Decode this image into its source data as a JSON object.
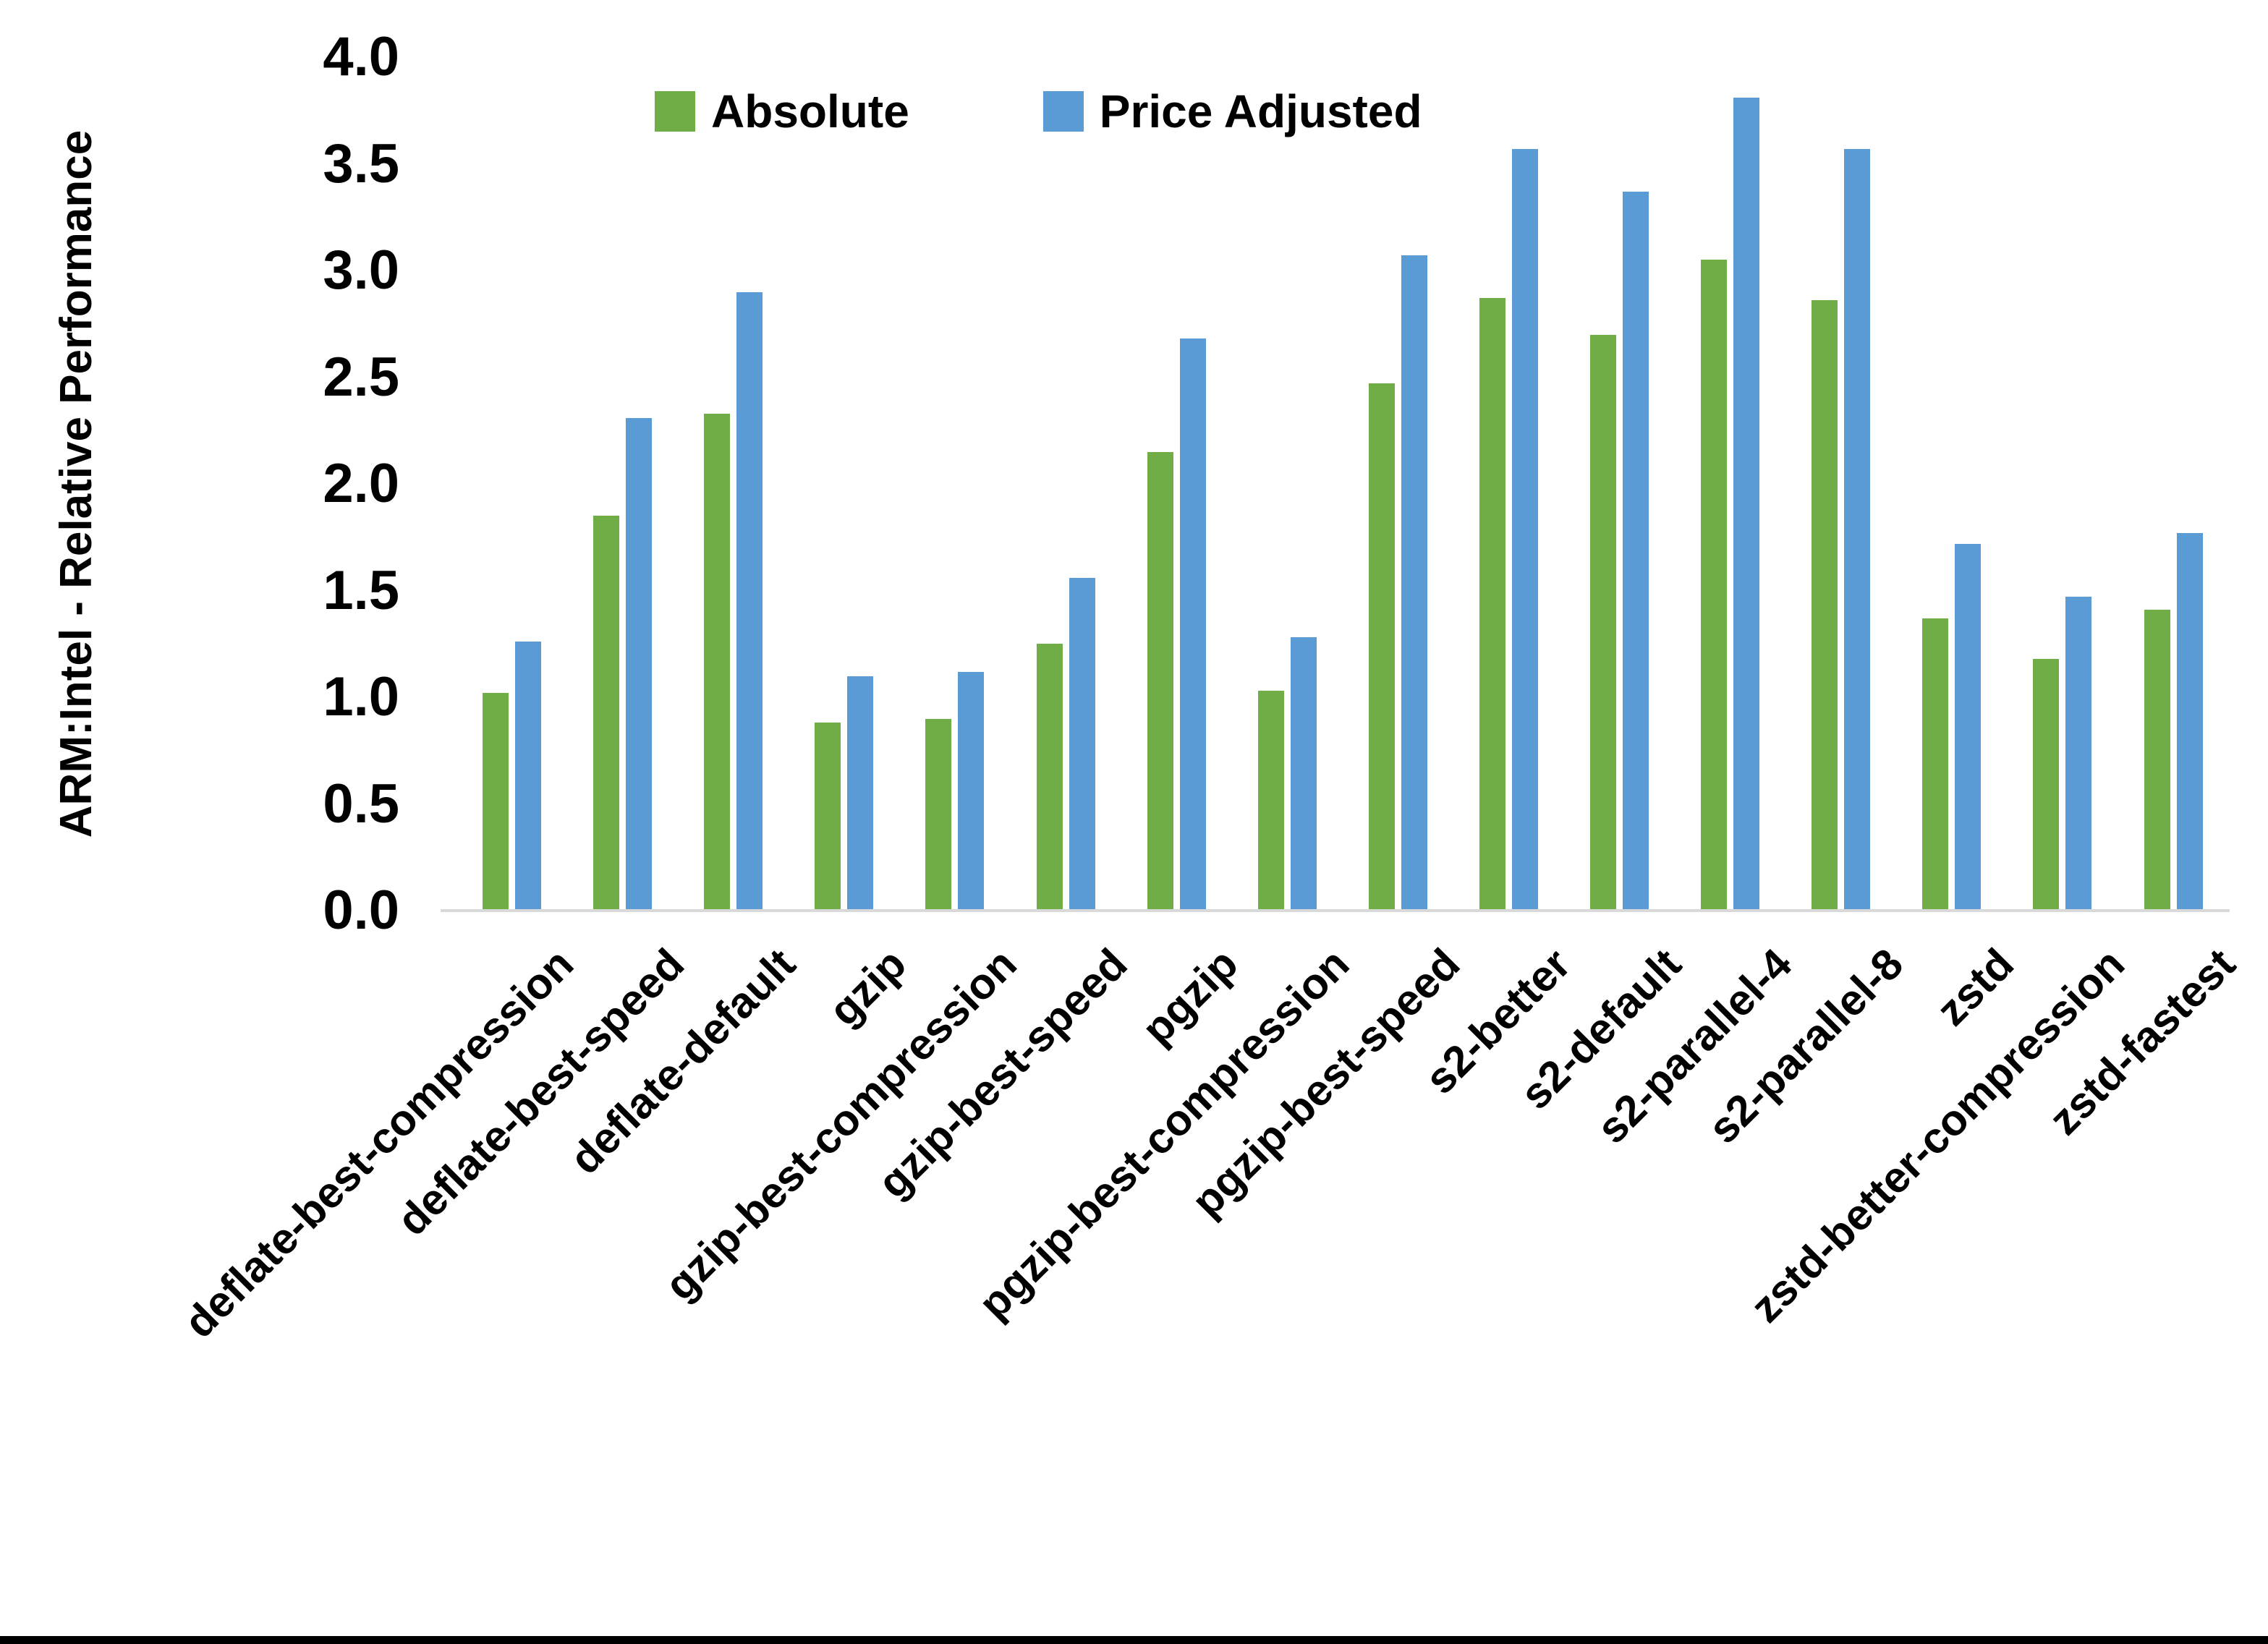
{
  "chart_data": {
    "type": "bar",
    "title": "",
    "ylabel": "ARM:Intel - Relative Performance",
    "xlabel": "",
    "ylim": [
      0,
      4
    ],
    "ytick_step": 0.5,
    "ytick_labels": [
      "0.0",
      "0.5",
      "1.0",
      "1.5",
      "2.0",
      "2.5",
      "3.0",
      "3.5",
      "4.0"
    ],
    "grid": false,
    "legend_position": "top-center",
    "categories": [
      "deflate-best-compression",
      "deflate-best-speed",
      "deflate-default",
      "gzip",
      "gzip-best-compression",
      "gzip-best-speed",
      "pgzip",
      "pgzip-best-compression",
      "pgzip-best-speed",
      "s2-better",
      "s2-default",
      "s2-parallel-4",
      "s2-parallel-8",
      "zstd",
      "zstd-better-compression",
      "zstd-fastest"
    ],
    "series": [
      {
        "name": "Absolute",
        "color": "#70AD47",
        "values": [
          1.02,
          1.85,
          2.33,
          0.88,
          0.9,
          1.25,
          2.15,
          1.03,
          2.47,
          2.87,
          2.7,
          3.05,
          2.86,
          1.37,
          1.18,
          1.41
        ]
      },
      {
        "name": "Price Adjusted",
        "color": "#5B9BD5",
        "values": [
          1.26,
          2.31,
          2.9,
          1.1,
          1.12,
          1.56,
          2.68,
          1.28,
          3.07,
          3.57,
          3.37,
          3.81,
          3.57,
          1.72,
          1.47,
          1.77
        ]
      }
    ]
  },
  "colors": {
    "background": "#FFFFFF",
    "axis_line": "#D9D9D9",
    "text": "#000000",
    "bottom_border": "#000000"
  }
}
